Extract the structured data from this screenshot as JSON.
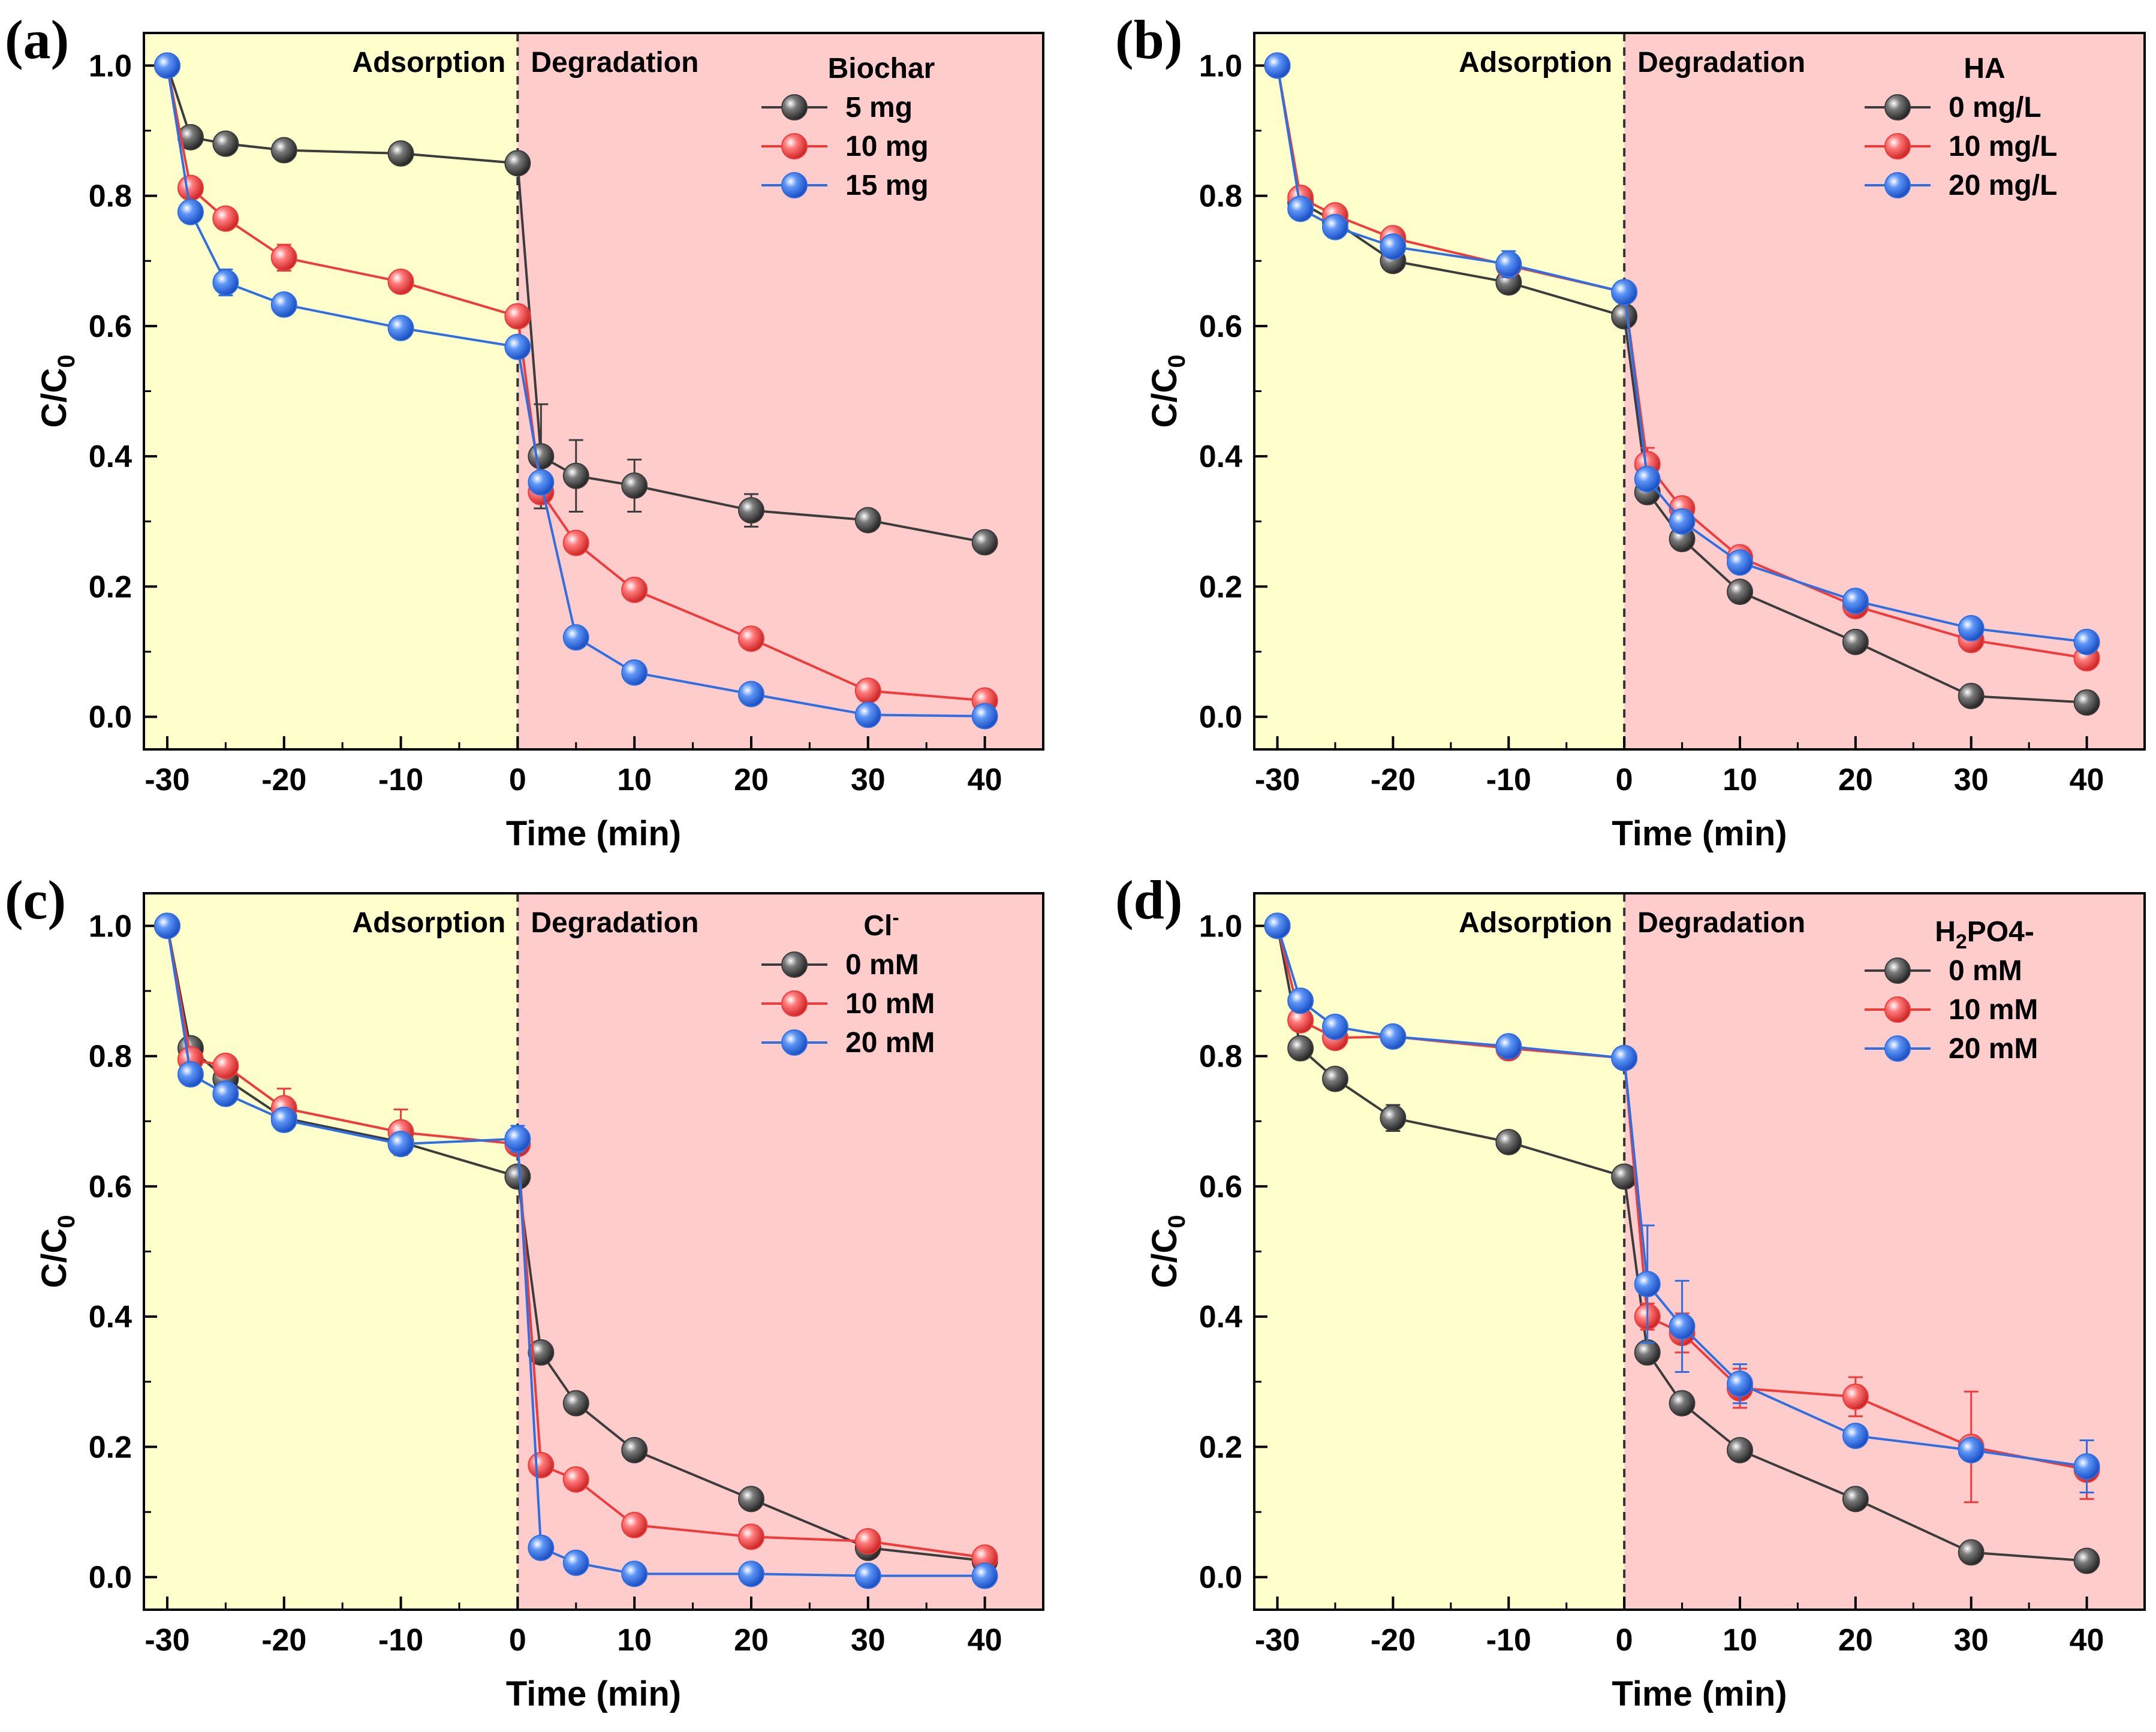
{
  "figure": {
    "xlabel": "Time (min)",
    "ylabel_main": "C/C",
    "ylabel_sub": "0",
    "region_left": "Adsorption",
    "region_right": "Degradation",
    "xlim": [
      -32,
      45
    ],
    "ylim": [
      -0.05,
      1.05
    ],
    "xticks": [
      -30,
      -20,
      -10,
      0,
      10,
      20,
      30,
      40
    ],
    "yticks": [
      "0.0",
      "0.2",
      "0.4",
      "0.6",
      "0.8",
      "1.0"
    ],
    "colors": {
      "adsorption_bg": "#ffffcc",
      "degradation_bg": "#ffcccc",
      "black": "#3c3c3c",
      "red": "#ef3b3b",
      "blue": "#2f6fe0"
    }
  },
  "chart_data": [
    {
      "panel": "(a)",
      "type": "line",
      "title": "",
      "xlabel": "Time (min)",
      "ylabel": "C/C0",
      "xlim": [
        -32,
        45
      ],
      "ylim": [
        -0.05,
        1.05
      ],
      "legend_title": "Biochar",
      "legend_title_sub": "",
      "legend_title_sup": "",
      "legend_title_tail": "",
      "x": [
        -30,
        -28,
        -25,
        -20,
        -10,
        0,
        2,
        5,
        10,
        20,
        30,
        40
      ],
      "series": [
        {
          "name": "5 mg",
          "color": "#3c3c3c",
          "values": [
            1.0,
            0.89,
            0.88,
            0.87,
            0.865,
            0.85,
            0.4,
            0.37,
            0.355,
            0.317,
            0.302,
            0.268
          ],
          "errors": [
            0,
            0.01,
            0.01,
            0.01,
            0.01,
            0.01,
            0.08,
            0.055,
            0.04,
            0.025,
            0.01,
            0.01
          ]
        },
        {
          "name": "10 mg",
          "color": "#ef3b3b",
          "values": [
            1.0,
            0.812,
            0.765,
            0.705,
            0.668,
            0.615,
            0.345,
            0.267,
            0.195,
            0.12,
            0.04,
            0.025
          ],
          "errors": [
            0,
            0.01,
            0.01,
            0.02,
            0.01,
            0.01,
            0.01,
            0.01,
            0.01,
            0.01,
            0.01,
            0.01
          ]
        },
        {
          "name": "15 mg",
          "color": "#2f6fe0",
          "values": [
            1.0,
            0.775,
            0.667,
            0.633,
            0.597,
            0.568,
            0.36,
            0.122,
            0.068,
            0.035,
            0.003,
            0.001
          ],
          "errors": [
            0,
            0.01,
            0.02,
            0.01,
            0.01,
            0.01,
            0.01,
            0.01,
            0.01,
            0.01,
            0.005,
            0.005
          ]
        }
      ]
    },
    {
      "panel": "(b)",
      "type": "line",
      "title": "",
      "xlabel": "Time (min)",
      "ylabel": "C/C0",
      "xlim": [
        -32,
        45
      ],
      "ylim": [
        -0.05,
        1.05
      ],
      "legend_title": "HA",
      "legend_title_sub": "",
      "legend_title_sup": "",
      "legend_title_tail": "",
      "x": [
        -30,
        -28,
        -25,
        -20,
        -10,
        0,
        2,
        5,
        10,
        20,
        30,
        40
      ],
      "series": [
        {
          "name": "0 mg/L",
          "color": "#3c3c3c",
          "values": [
            1.0,
            0.79,
            0.76,
            0.7,
            0.667,
            0.615,
            0.345,
            0.273,
            0.192,
            0.115,
            0.032,
            0.022
          ],
          "errors": [
            0,
            0.01,
            0.01,
            0.01,
            0.01,
            0.01,
            0.01,
            0.01,
            0.01,
            0.01,
            0.01,
            0.01
          ]
        },
        {
          "name": "10 mg/L",
          "color": "#ef3b3b",
          "values": [
            1.0,
            0.797,
            0.77,
            0.735,
            0.693,
            0.652,
            0.388,
            0.32,
            0.245,
            0.17,
            0.118,
            0.09
          ],
          "errors": [
            0,
            0.01,
            0.01,
            0.01,
            0.01,
            0.01,
            0.025,
            0.01,
            0.01,
            0.01,
            0.01,
            0.01
          ]
        },
        {
          "name": "20 mg/L",
          "color": "#2f6fe0",
          "values": [
            1.0,
            0.78,
            0.752,
            0.722,
            0.695,
            0.652,
            0.365,
            0.3,
            0.237,
            0.178,
            0.136,
            0.115
          ],
          "errors": [
            0,
            0.01,
            0.01,
            0.01,
            0.02,
            0.01,
            0.01,
            0.01,
            0.01,
            0.01,
            0.01,
            0.01
          ]
        }
      ]
    },
    {
      "panel": "(c)",
      "type": "line",
      "title": "",
      "xlabel": "Time (min)",
      "ylabel": "C/C0",
      "xlim": [
        -32,
        45
      ],
      "ylim": [
        -0.05,
        1.05
      ],
      "legend_title": "Cl",
      "legend_title_sub": "",
      "legend_title_sup": "-",
      "legend_title_tail": "",
      "x": [
        -30,
        -28,
        -25,
        -20,
        -10,
        0,
        2,
        5,
        10,
        20,
        30,
        40
      ],
      "series": [
        {
          "name": "0 mM",
          "color": "#3c3c3c",
          "values": [
            1.0,
            0.812,
            0.765,
            0.705,
            0.668,
            0.615,
            0.345,
            0.267,
            0.195,
            0.12,
            0.045,
            0.025
          ],
          "errors": [
            0,
            0.01,
            0.01,
            0.01,
            0.01,
            0.01,
            0.01,
            0.01,
            0.01,
            0.01,
            0.01,
            0.01
          ]
        },
        {
          "name": "10 mM",
          "color": "#ef3b3b",
          "values": [
            1.0,
            0.795,
            0.785,
            0.72,
            0.683,
            0.665,
            0.172,
            0.15,
            0.08,
            0.062,
            0.055,
            0.03
          ],
          "errors": [
            0,
            0.01,
            0.01,
            0.03,
            0.035,
            0.01,
            0.01,
            0.01,
            0.01,
            0.01,
            0.01,
            0.01
          ]
        },
        {
          "name": "20 mM",
          "color": "#2f6fe0",
          "values": [
            1.0,
            0.772,
            0.742,
            0.702,
            0.665,
            0.673,
            0.045,
            0.022,
            0.005,
            0.005,
            0.002,
            0.002
          ],
          "errors": [
            0,
            0.01,
            0.01,
            0.01,
            0.01,
            0.02,
            0.01,
            0.01,
            0.01,
            0.01,
            0.005,
            0.005
          ]
        }
      ]
    },
    {
      "panel": "(d)",
      "type": "line",
      "title": "",
      "xlabel": "Time (min)",
      "ylabel": "C/C0",
      "xlim": [
        -32,
        45
      ],
      "ylim": [
        -0.05,
        1.05
      ],
      "legend_title": "H",
      "legend_title_sub": "2",
      "legend_title_sup": "",
      "legend_title_tail": "PO4-",
      "x": [
        -30,
        -28,
        -25,
        -20,
        -10,
        0,
        2,
        5,
        10,
        20,
        30,
        40
      ],
      "series": [
        {
          "name": "0 mM",
          "color": "#3c3c3c",
          "values": [
            1.0,
            0.812,
            0.765,
            0.705,
            0.668,
            0.615,
            0.345,
            0.267,
            0.195,
            0.12,
            0.038,
            0.025
          ],
          "errors": [
            0,
            0.01,
            0.01,
            0.02,
            0.01,
            0.01,
            0.01,
            0.01,
            0.01,
            0.01,
            0.01,
            0.01
          ]
        },
        {
          "name": "10 mM",
          "color": "#ef3b3b",
          "values": [
            1.0,
            0.855,
            0.828,
            0.83,
            0.812,
            0.797,
            0.4,
            0.375,
            0.29,
            0.277,
            0.2,
            0.165
          ],
          "errors": [
            0,
            0.01,
            0.01,
            0.01,
            0.01,
            0.01,
            0.02,
            0.03,
            0.03,
            0.03,
            0.085,
            0.045
          ]
        },
        {
          "name": "20 mM",
          "color": "#2f6fe0",
          "values": [
            1.0,
            0.885,
            0.845,
            0.83,
            0.815,
            0.797,
            0.45,
            0.385,
            0.297,
            0.217,
            0.195,
            0.17
          ],
          "errors": [
            0,
            0.01,
            0.01,
            0.01,
            0.01,
            0.01,
            0.09,
            0.07,
            0.03,
            0.01,
            0.01,
            0.04
          ]
        }
      ]
    }
  ]
}
